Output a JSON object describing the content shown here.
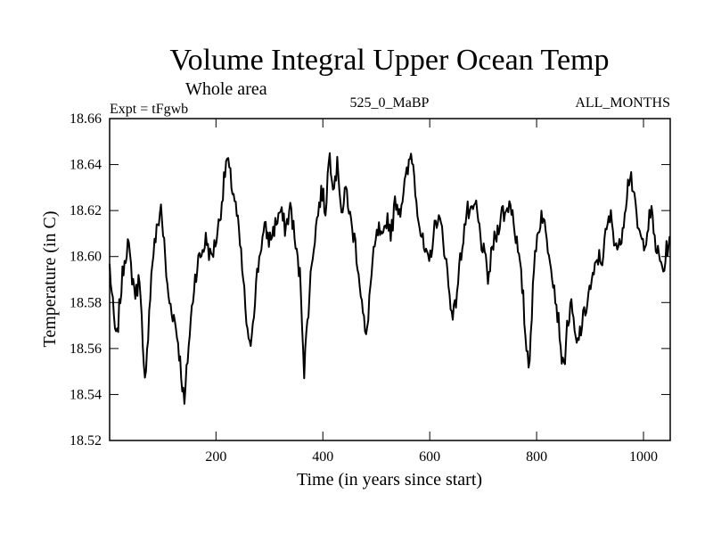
{
  "chart_data": {
    "type": "line",
    "title": "Volume Integral Upper Ocean Temp",
    "subtitle": "Whole area",
    "experiment": "Expt = tFgwb",
    "run_id": "525_0_MaBP",
    "months": "ALL_MONTHS",
    "xlabel": "Time (in years since start)",
    "ylabel": "Temperature (in C)",
    "xlim": [
      1,
      1050
    ],
    "ylim": [
      18.52,
      18.66
    ],
    "x_ticks": [
      200,
      400,
      600,
      800,
      1000
    ],
    "x_tick_labels": [
      "200",
      "400",
      "600",
      "800",
      "1000"
    ],
    "y_ticks": [
      18.52,
      18.54,
      18.56,
      18.58,
      18.6,
      18.62,
      18.64,
      18.66
    ],
    "y_tick_labels": [
      "18.52",
      "18.54",
      "18.56",
      "18.58",
      "18.60",
      "18.62",
      "18.64",
      "18.66"
    ],
    "grid": false,
    "series": [
      {
        "name": "Temperature",
        "color": "#000000",
        "anchors": [
          [
            1,
            18.596
          ],
          [
            8,
            18.575
          ],
          [
            14,
            18.562
          ],
          [
            20,
            18.58
          ],
          [
            28,
            18.598
          ],
          [
            35,
            18.606
          ],
          [
            42,
            18.593
          ],
          [
            50,
            18.583
          ],
          [
            58,
            18.593
          ],
          [
            64,
            18.552
          ],
          [
            68,
            18.542
          ],
          [
            75,
            18.578
          ],
          [
            82,
            18.601
          ],
          [
            90,
            18.612
          ],
          [
            97,
            18.622
          ],
          [
            103,
            18.605
          ],
          [
            110,
            18.583
          ],
          [
            116,
            18.578
          ],
          [
            122,
            18.573
          ],
          [
            128,
            18.565
          ],
          [
            134,
            18.552
          ],
          [
            141,
            18.535
          ],
          [
            147,
            18.556
          ],
          [
            153,
            18.572
          ],
          [
            160,
            18.59
          ],
          [
            167,
            18.598
          ],
          [
            174,
            18.602
          ],
          [
            182,
            18.608
          ],
          [
            190,
            18.599
          ],
          [
            198,
            18.605
          ],
          [
            206,
            18.615
          ],
          [
            213,
            18.628
          ],
          [
            220,
            18.643
          ],
          [
            228,
            18.633
          ],
          [
            235,
            18.625
          ],
          [
            242,
            18.612
          ],
          [
            249,
            18.595
          ],
          [
            256,
            18.575
          ],
          [
            262,
            18.558
          ],
          [
            268,
            18.57
          ],
          [
            276,
            18.59
          ],
          [
            284,
            18.605
          ],
          [
            292,
            18.612
          ],
          [
            300,
            18.607
          ],
          [
            310,
            18.613
          ],
          [
            320,
            18.62
          ],
          [
            330,
            18.612
          ],
          [
            340,
            18.622
          ],
          [
            350,
            18.602
          ],
          [
            358,
            18.59
          ],
          [
            365,
            18.551
          ],
          [
            372,
            18.575
          ],
          [
            380,
            18.6
          ],
          [
            390,
            18.618
          ],
          [
            398,
            18.629
          ],
          [
            405,
            18.62
          ],
          [
            412,
            18.645
          ],
          [
            420,
            18.632
          ],
          [
            428,
            18.64
          ],
          [
            436,
            18.618
          ],
          [
            444,
            18.63
          ],
          [
            452,
            18.615
          ],
          [
            460,
            18.607
          ],
          [
            468,
            18.592
          ],
          [
            475,
            18.575
          ],
          [
            481,
            18.563
          ],
          [
            488,
            18.585
          ],
          [
            496,
            18.602
          ],
          [
            504,
            18.612
          ],
          [
            512,
            18.605
          ],
          [
            520,
            18.618
          ],
          [
            528,
            18.61
          ],
          [
            536,
            18.625
          ],
          [
            544,
            18.62
          ],
          [
            552,
            18.63
          ],
          [
            560,
            18.638
          ],
          [
            566,
            18.646
          ],
          [
            574,
            18.628
          ],
          [
            582,
            18.612
          ],
          [
            590,
            18.602
          ],
          [
            598,
            18.596
          ],
          [
            606,
            18.608
          ],
          [
            614,
            18.618
          ],
          [
            622,
            18.612
          ],
          [
            630,
            18.6
          ],
          [
            638,
            18.58
          ],
          [
            646,
            18.575
          ],
          [
            654,
            18.592
          ],
          [
            662,
            18.608
          ],
          [
            670,
            18.62
          ],
          [
            678,
            18.617
          ],
          [
            686,
            18.623
          ],
          [
            694,
            18.61
          ],
          [
            702,
            18.6
          ],
          [
            710,
            18.59
          ],
          [
            718,
            18.605
          ],
          [
            726,
            18.61
          ],
          [
            734,
            18.62
          ],
          [
            742,
            18.618
          ],
          [
            750,
            18.625
          ],
          [
            758,
            18.615
          ],
          [
            766,
            18.6
          ],
          [
            774,
            18.585
          ],
          [
            780,
            18.562
          ],
          [
            786,
            18.554
          ],
          [
            792,
            18.58
          ],
          [
            798,
            18.605
          ],
          [
            804,
            18.612
          ],
          [
            810,
            18.62
          ],
          [
            818,
            18.608
          ],
          [
            826,
            18.6
          ],
          [
            834,
            18.585
          ],
          [
            842,
            18.57
          ],
          [
            850,
            18.549
          ],
          [
            858,
            18.572
          ],
          [
            866,
            18.578
          ],
          [
            874,
            18.56
          ],
          [
            882,
            18.568
          ],
          [
            890,
            18.575
          ],
          [
            898,
            18.585
          ],
          [
            906,
            18.59
          ],
          [
            914,
            18.6
          ],
          [
            922,
            18.598
          ],
          [
            930,
            18.61
          ],
          [
            938,
            18.618
          ],
          [
            946,
            18.608
          ],
          [
            954,
            18.602
          ],
          [
            962,
            18.615
          ],
          [
            970,
            18.63
          ],
          [
            976,
            18.638
          ],
          [
            982,
            18.625
          ],
          [
            990,
            18.612
          ],
          [
            998,
            18.605
          ],
          [
            1006,
            18.61
          ],
          [
            1014,
            18.62
          ],
          [
            1022,
            18.606
          ],
          [
            1030,
            18.598
          ],
          [
            1038,
            18.594
          ],
          [
            1044,
            18.604
          ],
          [
            1050,
            18.607
          ]
        ],
        "noise_amplitude": 0.0045
      }
    ]
  }
}
